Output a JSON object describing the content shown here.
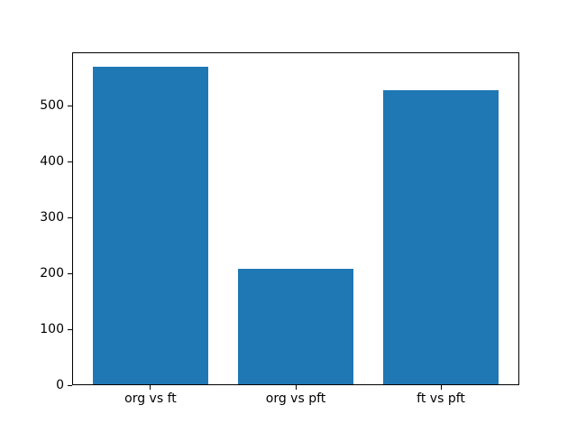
{
  "chart_data": {
    "type": "bar",
    "categories": [
      "org vs ft",
      "org vs pft",
      "ft vs pft"
    ],
    "values": [
      569,
      207,
      527
    ],
    "title": "",
    "xlabel": "",
    "ylabel": "",
    "ylim": [
      0,
      597
    ],
    "yticks": [
      0,
      100,
      200,
      300,
      400,
      500
    ],
    "bar_color": "#1f77b4",
    "background_color": "#ffffff",
    "spine_color": "#000000",
    "grid": false,
    "legend": null
  }
}
